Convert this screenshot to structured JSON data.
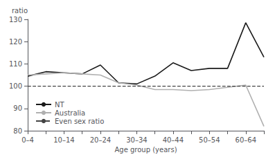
{
  "chart_data": {
    "type": "line",
    "xlabel": "Age group (years)",
    "ylabel": "ratio",
    "categories": [
      "0–4",
      null,
      "10–14",
      null,
      "20–24",
      null,
      "30–34",
      null,
      "40–44",
      null,
      "50–54",
      null,
      "60–64",
      null
    ],
    "series": [
      {
        "name": "NT",
        "color": "#1a1a1a",
        "line_style": "solid",
        "values": [
          104.5,
          106.5,
          106.0,
          105.5,
          109.5,
          101.5,
          101.0,
          104.5,
          110.5,
          107.0,
          108.0,
          108.0,
          128.5,
          113.0
        ]
      },
      {
        "name": "Australia",
        "color": "#b0b0b0",
        "line_style": "solid",
        "values": [
          105.0,
          105.5,
          106.0,
          105.5,
          105.0,
          101.5,
          100.5,
          98.5,
          98.5,
          98.0,
          98.5,
          99.5,
          100.5,
          82.0
        ]
      },
      {
        "name": "Even sex ratio",
        "color": "#444444",
        "line_style": "dashed",
        "values": [
          100,
          100,
          100,
          100,
          100,
          100,
          100,
          100,
          100,
          100,
          100,
          100,
          100,
          100
        ]
      }
    ],
    "ylim": [
      80,
      130
    ],
    "yticks": [
      80,
      90,
      100,
      110,
      120,
      130
    ],
    "grid": false,
    "legend": "lower left"
  }
}
